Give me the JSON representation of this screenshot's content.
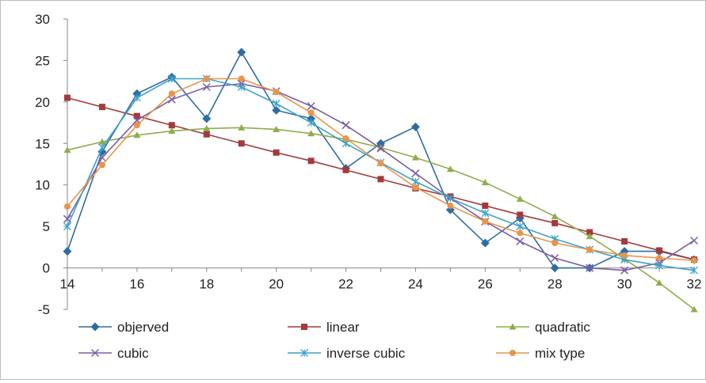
{
  "chart_data": {
    "type": "line",
    "title": "",
    "xlabel": "",
    "ylabel": "",
    "xlim": [
      14,
      32
    ],
    "ylim": [
      -5,
      30
    ],
    "x_ticks": [
      "14",
      "16",
      "18",
      "20",
      "22",
      "24",
      "26",
      "28",
      "30",
      "32"
    ],
    "y_ticks": [
      "30",
      "25",
      "20",
      "15",
      "10",
      "5",
      "0",
      "-5"
    ],
    "grid": false,
    "legend_position": "bottom",
    "x": [
      14,
      15,
      16,
      17,
      18,
      19,
      20,
      21,
      22,
      23,
      24,
      25,
      26,
      27,
      28,
      29,
      30,
      31,
      32
    ],
    "series": [
      {
        "name": "objerved",
        "color": "#2e6da4",
        "marker": "diamond",
        "values": [
          2,
          14,
          21,
          23,
          18,
          26,
          19,
          18,
          12,
          15,
          17,
          7,
          3,
          6,
          0,
          0,
          2,
          2,
          1
        ]
      },
      {
        "name": "linear",
        "color": "#a23b3b",
        "marker": "square",
        "values": [
          20.5,
          19.4,
          18.3,
          17.2,
          16.1,
          15.0,
          13.9,
          12.9,
          11.8,
          10.7,
          9.6,
          8.6,
          7.5,
          6.4,
          5.4,
          4.3,
          3.2,
          2.1,
          1.0
        ]
      },
      {
        "name": "quadratic",
        "color": "#8fad4a",
        "marker": "triangle",
        "values": [
          14.2,
          15.2,
          16.0,
          16.5,
          16.8,
          16.9,
          16.7,
          16.2,
          15.5,
          14.5,
          13.3,
          11.9,
          10.3,
          8.3,
          6.2,
          3.8,
          1.1,
          -1.8,
          -5
        ]
      },
      {
        "name": "cubic",
        "color": "#7b5fa5",
        "marker": "x",
        "values": [
          5.9,
          13.3,
          17.8,
          20.3,
          21.8,
          22.2,
          21.3,
          19.5,
          17.2,
          14.4,
          11.4,
          8.4,
          5.6,
          3.2,
          1.2,
          0.0,
          -0.3,
          0.6,
          3.3
        ]
      },
      {
        "name": "inverse cubic",
        "color": "#3ca3c9",
        "marker": "star",
        "values": [
          5.0,
          14.5,
          20.5,
          22.8,
          22.8,
          21.8,
          19.8,
          17.5,
          15.0,
          12.7,
          10.4,
          8.4,
          6.6,
          5.0,
          3.5,
          2.2,
          1.0,
          0.3,
          -0.3
        ]
      },
      {
        "name": "mix type",
        "color": "#e8954a",
        "marker": "circle",
        "values": [
          7.4,
          12.4,
          17.2,
          21.0,
          22.8,
          22.8,
          21.2,
          18.7,
          15.6,
          12.6,
          9.7,
          7.5,
          5.6,
          4.2,
          3.0,
          2.2,
          1.5,
          1.2,
          0.9
        ]
      }
    ]
  }
}
